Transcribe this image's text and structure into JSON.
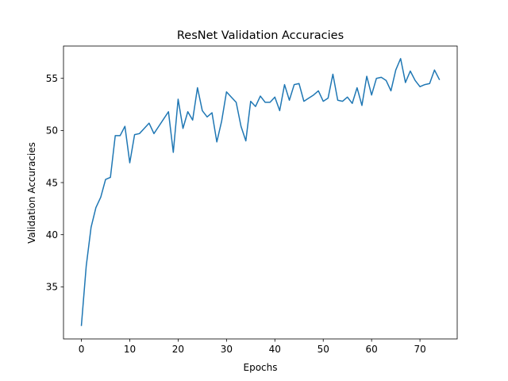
{
  "chart_data": {
    "type": "line",
    "title": "ResNet Validation Accuracies",
    "xlabel": "Epochs",
    "ylabel": "Validation Accuracies",
    "xlim": [
      -3.7,
      77.7
    ],
    "ylim": [
      30.0,
      58.1
    ],
    "xticks": [
      0,
      10,
      20,
      30,
      40,
      50,
      60,
      70
    ],
    "yticks": [
      35,
      40,
      45,
      50,
      55
    ],
    "grid": false,
    "legend": "none",
    "series": [
      {
        "color": "#1f77b4",
        "x": [
          0,
          1,
          2,
          3,
          4,
          5,
          6,
          7,
          8,
          9,
          10,
          11,
          12,
          13,
          14,
          15,
          16,
          17,
          18,
          19,
          20,
          21,
          22,
          23,
          24,
          25,
          26,
          27,
          28,
          29,
          30,
          31,
          32,
          33,
          34,
          35,
          36,
          37,
          38,
          39,
          40,
          41,
          42,
          43,
          44,
          45,
          46,
          47,
          48,
          49,
          50,
          51,
          52,
          53,
          54,
          55,
          56,
          57,
          58,
          59,
          60,
          61,
          62,
          63,
          64,
          65,
          66,
          67,
          68,
          69,
          70,
          71,
          72,
          73,
          74
        ],
        "values": [
          31.3,
          37.0,
          40.7,
          42.6,
          43.6,
          45.3,
          45.5,
          49.5,
          49.5,
          50.4,
          46.9,
          49.6,
          49.7,
          50.2,
          50.7,
          49.7,
          50.4,
          51.1,
          51.8,
          47.9,
          53.0,
          50.2,
          51.8,
          51.0,
          54.1,
          51.9,
          51.3,
          51.7,
          48.9,
          50.9,
          53.7,
          53.2,
          52.7,
          50.4,
          49.0,
          52.8,
          52.3,
          53.3,
          52.7,
          52.7,
          53.2,
          51.9,
          54.4,
          52.9,
          54.4,
          54.5,
          52.8,
          53.1,
          53.4,
          53.8,
          52.8,
          53.1,
          55.4,
          52.9,
          52.8,
          53.2,
          52.6,
          54.1,
          52.4,
          55.2,
          53.4,
          55.0,
          55.1,
          54.8,
          53.8,
          55.8,
          56.9,
          54.6,
          55.7,
          54.8,
          54.2,
          54.4,
          54.5,
          55.8,
          54.9
        ]
      }
    ]
  }
}
